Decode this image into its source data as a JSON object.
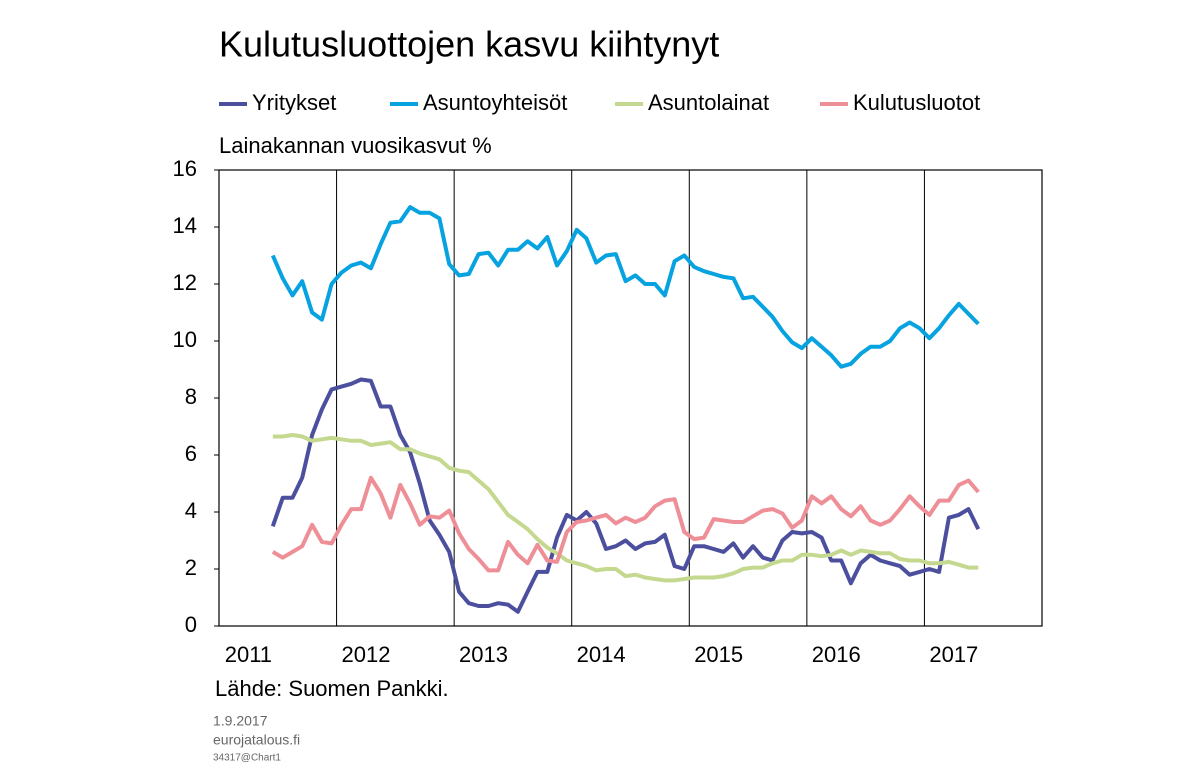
{
  "chart_data": {
    "type": "line",
    "title": "Kulutusluottojen kasvu kiihtynyt",
    "subtitle": "Lainakannan vuosikasvut %",
    "source": "Lähde: Suomen Pankki.",
    "footer": [
      "1.9.2017",
      "eurojatalous.fi",
      "34317@Chart1"
    ],
    "x": [
      2011.458,
      2011.542,
      2011.625,
      2011.708,
      2011.792,
      2011.875,
      2011.958,
      2012.042,
      2012.125,
      2012.208,
      2012.292,
      2012.375,
      2012.458,
      2012.542,
      2012.625,
      2012.708,
      2012.792,
      2012.875,
      2012.958,
      2013.042,
      2013.125,
      2013.208,
      2013.292,
      2013.375,
      2013.458,
      2013.542,
      2013.625,
      2013.708,
      2013.792,
      2013.875,
      2013.958,
      2014.042,
      2014.125,
      2014.208,
      2014.292,
      2014.375,
      2014.458,
      2014.542,
      2014.625,
      2014.708,
      2014.792,
      2014.875,
      2014.958,
      2015.042,
      2015.125,
      2015.208,
      2015.292,
      2015.375,
      2015.458,
      2015.542,
      2015.625,
      2015.708,
      2015.792,
      2015.875,
      2015.958,
      2016.042,
      2016.125,
      2016.208,
      2016.292,
      2016.375,
      2016.458,
      2016.542,
      2016.625,
      2016.708,
      2016.792,
      2016.875,
      2016.958,
      2017.042,
      2017.125,
      2017.208,
      2017.292,
      2017.375,
      2017.458
    ],
    "series": [
      {
        "name": "Yritykset",
        "color": "#4b4f9e",
        "values": [
          3.5,
          4.5,
          4.5,
          5.2,
          6.7,
          7.6,
          8.3,
          8.4,
          8.5,
          8.65,
          8.6,
          7.7,
          7.7,
          6.7,
          6.1,
          5.0,
          3.7,
          3.2,
          2.6,
          1.2,
          0.8,
          0.7,
          0.7,
          0.8,
          0.75,
          0.5,
          1.2,
          1.9,
          1.9,
          3.1,
          3.9,
          3.7,
          4.0,
          3.6,
          2.7,
          2.8,
          3.0,
          2.7,
          2.9,
          2.95,
          3.2,
          2.1,
          2.0,
          2.8,
          2.8,
          2.7,
          2.6,
          2.9,
          2.4,
          2.8,
          2.4,
          2.3,
          3.0,
          3.3,
          3.25,
          3.3,
          3.1,
          2.3,
          2.3,
          1.5,
          2.2,
          2.5,
          2.3,
          2.2,
          2.1,
          1.8,
          1.9,
          2.0,
          1.9,
          3.8,
          3.9,
          4.1,
          3.4
        ]
      },
      {
        "name": "Asuntoyhteisöt",
        "color": "#06a3e0",
        "values": [
          13.0,
          12.2,
          11.6,
          12.1,
          11.0,
          10.75,
          12.0,
          12.4,
          12.65,
          12.75,
          12.55,
          13.4,
          14.15,
          14.2,
          14.7,
          14.5,
          14.5,
          14.3,
          12.7,
          12.3,
          12.35,
          13.05,
          13.1,
          12.65,
          13.2,
          13.2,
          13.5,
          13.25,
          13.65,
          12.65,
          13.15,
          13.9,
          13.6,
          12.75,
          13.0,
          13.05,
          12.1,
          12.3,
          12.0,
          12.0,
          11.6,
          12.8,
          13.0,
          12.6,
          12.45,
          12.35,
          12.25,
          12.2,
          11.5,
          11.55,
          11.2,
          10.85,
          10.35,
          9.95,
          9.75,
          10.1,
          9.8,
          9.5,
          9.1,
          9.2,
          9.55,
          9.8,
          9.8,
          10.0,
          10.45,
          10.65,
          10.45,
          10.1,
          10.45,
          10.9,
          11.3,
          10.95,
          10.6
        ]
      },
      {
        "name": "Asuntolainat",
        "color": "#c4d98f",
        "values": [
          6.65,
          6.65,
          6.7,
          6.65,
          6.5,
          6.55,
          6.6,
          6.55,
          6.5,
          6.5,
          6.35,
          6.4,
          6.45,
          6.2,
          6.2,
          6.05,
          5.95,
          5.85,
          5.55,
          5.45,
          5.4,
          5.1,
          4.8,
          4.35,
          3.9,
          3.65,
          3.4,
          3.05,
          2.75,
          2.55,
          2.3,
          2.2,
          2.1,
          1.95,
          2.0,
          2.0,
          1.75,
          1.8,
          1.7,
          1.65,
          1.6,
          1.6,
          1.65,
          1.7,
          1.7,
          1.7,
          1.75,
          1.85,
          2.0,
          2.05,
          2.05,
          2.2,
          2.3,
          2.3,
          2.5,
          2.5,
          2.45,
          2.5,
          2.65,
          2.5,
          2.65,
          2.6,
          2.55,
          2.55,
          2.35,
          2.3,
          2.3,
          2.2,
          2.2,
          2.25,
          2.15,
          2.05,
          2.05
        ]
      },
      {
        "name": "Kulutusluotot",
        "color": "#ee8f97",
        "values": [
          2.6,
          2.4,
          2.6,
          2.8,
          3.55,
          2.95,
          2.9,
          3.55,
          4.1,
          4.1,
          5.2,
          4.65,
          3.8,
          4.95,
          4.3,
          3.55,
          3.85,
          3.8,
          4.05,
          3.25,
          2.7,
          2.35,
          1.95,
          1.95,
          2.95,
          2.5,
          2.2,
          2.85,
          2.3,
          2.25,
          3.3,
          3.65,
          3.7,
          3.8,
          3.9,
          3.6,
          3.8,
          3.65,
          3.8,
          4.2,
          4.4,
          4.45,
          3.3,
          3.05,
          3.1,
          3.75,
          3.7,
          3.65,
          3.65,
          3.85,
          4.05,
          4.1,
          3.95,
          3.45,
          3.7,
          4.55,
          4.3,
          4.55,
          4.1,
          3.85,
          4.2,
          3.7,
          3.55,
          3.7,
          4.1,
          4.55,
          4.2,
          3.9,
          4.4,
          4.4,
          4.95,
          5.1,
          4.7
        ]
      }
    ],
    "xlim": [
      2011,
      2018
    ],
    "xticks": [
      2011,
      2012,
      2013,
      2014,
      2015,
      2016,
      2017
    ],
    "ylim": [
      0,
      16
    ],
    "yticks": [
      0,
      2,
      4,
      6,
      8,
      10,
      12,
      14,
      16
    ],
    "grid": "x",
    "legend": "top"
  }
}
